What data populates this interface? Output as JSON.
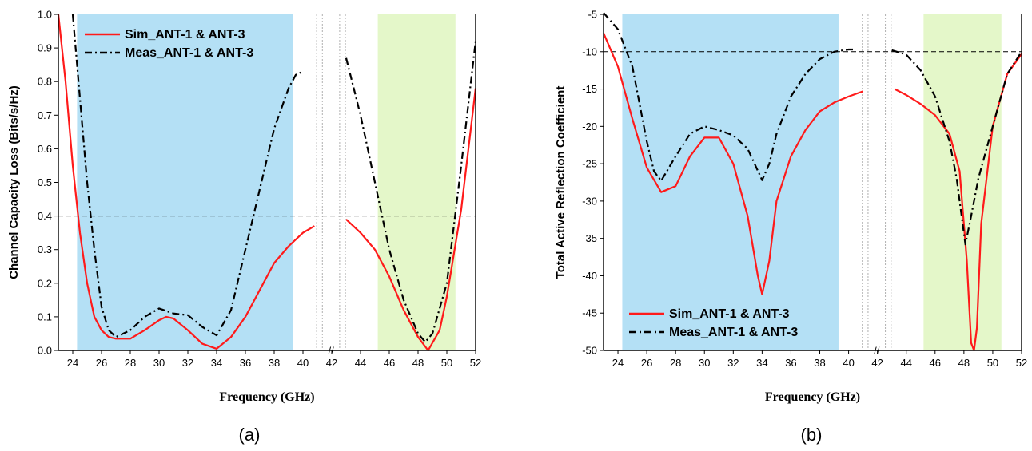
{
  "chart_data": [
    {
      "type": "line",
      "caption": "(a)",
      "xlabel": "Frequency (GHz)",
      "ylabel": "Channel Capacity Loss (Bits/s/Hz)",
      "xticks": [
        "24",
        "26",
        "28",
        "30",
        "32",
        "34",
        "36",
        "38",
        "40",
        "42",
        "44",
        "46",
        "48",
        "50",
        "52"
      ],
      "yticks": [
        "0.0",
        "0.1",
        "0.2",
        "0.3",
        "0.4",
        "0.5",
        "0.6",
        "0.7",
        "0.8",
        "0.9",
        "1.0"
      ],
      "ylim": [
        0,
        1.0
      ],
      "break_label": "//",
      "threshold": 0.4,
      "bands": [
        {
          "from": 24.3,
          "to": 39.3,
          "color": "#b4e0f5"
        },
        {
          "from": 45.2,
          "to": 50.6,
          "color": "#e4f7c9"
        }
      ],
      "legend_position": "top-left",
      "series": [
        {
          "name": "Sim_ANT-1 & ANT-3",
          "color": "#ff1a1a",
          "dash": "solid",
          "segments": [
            [
              [
                23,
                1.0
              ],
              [
                23.5,
                0.8
              ],
              [
                24,
                0.55
              ],
              [
                24.5,
                0.35
              ],
              [
                25,
                0.2
              ],
              [
                25.5,
                0.1
              ],
              [
                26,
                0.06
              ],
              [
                26.5,
                0.04
              ],
              [
                27,
                0.035
              ],
              [
                28,
                0.035
              ],
              [
                29,
                0.06
              ],
              [
                30,
                0.09
              ],
              [
                30.5,
                0.1
              ],
              [
                31,
                0.095
              ],
              [
                32,
                0.06
              ],
              [
                33,
                0.02
              ],
              [
                34,
                0.005
              ],
              [
                35,
                0.04
              ],
              [
                36,
                0.1
              ],
              [
                37,
                0.18
              ],
              [
                38,
                0.26
              ],
              [
                39,
                0.31
              ],
              [
                40,
                0.35
              ],
              [
                40.8,
                0.37
              ]
            ],
            [
              [
                43,
                0.39
              ],
              [
                44,
                0.35
              ],
              [
                45,
                0.3
              ],
              [
                46,
                0.22
              ],
              [
                47,
                0.12
              ],
              [
                48,
                0.04
              ],
              [
                48.7,
                0.0
              ],
              [
                49.5,
                0.06
              ],
              [
                50,
                0.16
              ],
              [
                51,
                0.42
              ],
              [
                52,
                0.78
              ]
            ]
          ]
        },
        {
          "name": "Meas_ANT-1 & ANT-3",
          "color": "#000000",
          "dash": "dashdot",
          "segments": [
            [
              [
                24,
                1.0
              ],
              [
                24.5,
                0.75
              ],
              [
                25,
                0.5
              ],
              [
                25.5,
                0.3
              ],
              [
                26,
                0.13
              ],
              [
                26.5,
                0.06
              ],
              [
                27,
                0.04
              ],
              [
                28,
                0.06
              ],
              [
                29,
                0.1
              ],
              [
                30,
                0.125
              ],
              [
                31,
                0.11
              ],
              [
                32,
                0.105
              ],
              [
                33,
                0.07
              ],
              [
                34,
                0.045
              ],
              [
                35,
                0.12
              ],
              [
                36,
                0.3
              ],
              [
                37,
                0.48
              ],
              [
                38,
                0.66
              ],
              [
                39,
                0.78
              ],
              [
                39.5,
                0.82
              ],
              [
                40,
                0.83
              ]
            ],
            [
              [
                43,
                0.87
              ],
              [
                44,
                0.7
              ],
              [
                45,
                0.5
              ],
              [
                46,
                0.3
              ],
              [
                47,
                0.15
              ],
              [
                48,
                0.05
              ],
              [
                48.5,
                0.025
              ],
              [
                49,
                0.05
              ],
              [
                50,
                0.2
              ],
              [
                51,
                0.55
              ],
              [
                52,
                0.92
              ]
            ]
          ]
        }
      ]
    },
    {
      "type": "line",
      "caption": "(b)",
      "xlabel": "Frequency (GHz)",
      "ylabel": "Total Active Reflection Coefficient",
      "xticks": [
        "24",
        "26",
        "28",
        "30",
        "32",
        "34",
        "36",
        "38",
        "40",
        "42",
        "44",
        "46",
        "48",
        "50",
        "52"
      ],
      "yticks": [
        "-5",
        "-10",
        "-15",
        "-20",
        "-25",
        "-30",
        "-35",
        "-40",
        "-45",
        "-50"
      ],
      "ylim": [
        -50,
        -5
      ],
      "break_label": "//",
      "threshold": -10,
      "bands": [
        {
          "from": 24.3,
          "to": 39.3,
          "color": "#b4e0f5"
        },
        {
          "from": 45.2,
          "to": 50.6,
          "color": "#e4f7c9"
        }
      ],
      "legend_position": "bottom-left",
      "series": [
        {
          "name": "Sim_ANT-1 & ANT-3",
          "color": "#ff1a1a",
          "dash": "solid",
          "segments": [
            [
              [
                23,
                -7.5
              ],
              [
                24,
                -12
              ],
              [
                25,
                -19
              ],
              [
                26,
                -25.5
              ],
              [
                27,
                -28.8
              ],
              [
                28,
                -28
              ],
              [
                29,
                -24
              ],
              [
                30,
                -21.5
              ],
              [
                31,
                -21.5
              ],
              [
                32,
                -25
              ],
              [
                33,
                -32
              ],
              [
                33.7,
                -40
              ],
              [
                34,
                -42.5
              ],
              [
                34.5,
                -38
              ],
              [
                35,
                -30
              ],
              [
                36,
                -24
              ],
              [
                37,
                -20.5
              ],
              [
                38,
                -18
              ],
              [
                39,
                -16.8
              ],
              [
                40,
                -16
              ],
              [
                41,
                -15.3
              ]
            ],
            [
              [
                43.2,
                -15
              ],
              [
                44,
                -15.8
              ],
              [
                45,
                -17
              ],
              [
                46,
                -18.5
              ],
              [
                47,
                -21
              ],
              [
                47.7,
                -26
              ],
              [
                48.2,
                -38
              ],
              [
                48.5,
                -49
              ],
              [
                48.7,
                -50
              ],
              [
                48.9,
                -47
              ],
              [
                49.2,
                -33
              ],
              [
                50,
                -20
              ],
              [
                51,
                -13
              ],
              [
                52,
                -10.3
              ]
            ]
          ]
        },
        {
          "name": "Meas_ANT-1 & ANT-3",
          "color": "#000000",
          "dash": "dashdot",
          "segments": [
            [
              [
                23,
                -4.8
              ],
              [
                24,
                -7
              ],
              [
                25,
                -12
              ],
              [
                26,
                -22
              ],
              [
                26.5,
                -26
              ],
              [
                27,
                -27.3
              ],
              [
                28,
                -24
              ],
              [
                29,
                -21
              ],
              [
                30,
                -20
              ],
              [
                31,
                -20.5
              ],
              [
                32,
                -21.2
              ],
              [
                33,
                -23
              ],
              [
                34,
                -27.2
              ],
              [
                34.5,
                -25
              ],
              [
                35,
                -21
              ],
              [
                36,
                -16
              ],
              [
                37,
                -13
              ],
              [
                38,
                -11
              ],
              [
                39,
                -10
              ],
              [
                40,
                -9.7
              ],
              [
                40.5,
                -9.7
              ]
            ],
            [
              [
                43,
                -9.8
              ],
              [
                44,
                -10.4
              ],
              [
                45,
                -12.5
              ],
              [
                46,
                -16
              ],
              [
                47,
                -22
              ],
              [
                47.5,
                -27
              ],
              [
                48.1,
                -35.8
              ],
              [
                48.5,
                -32
              ],
              [
                49,
                -27
              ],
              [
                50,
                -20
              ],
              [
                51,
                -13
              ],
              [
                52,
                -10
              ]
            ]
          ]
        }
      ]
    }
  ]
}
